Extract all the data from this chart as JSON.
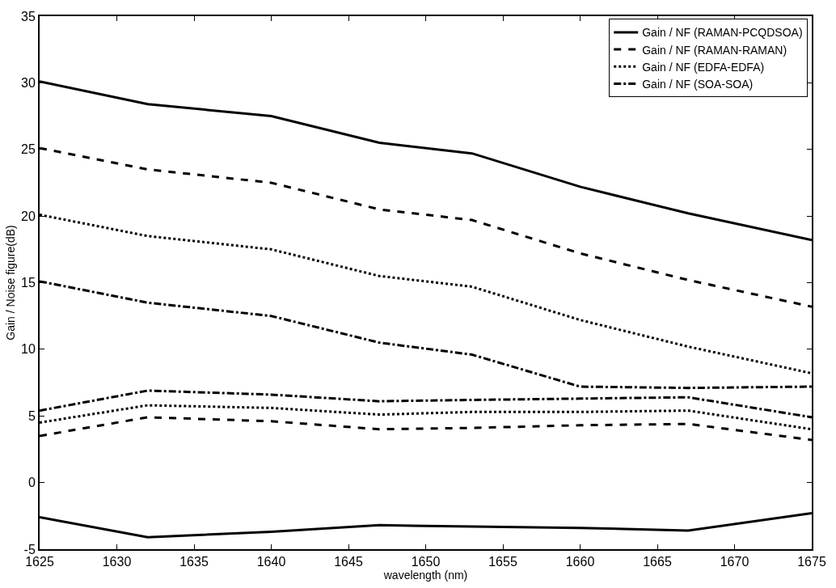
{
  "chart_data": {
    "type": "line",
    "xlabel": "wavelength (nm)",
    "ylabel": "Gain / Noise figure(dB)",
    "x": [
      1625,
      1632,
      1640,
      1647,
      1653,
      1660,
      1667,
      1675
    ],
    "xlim": [
      1625,
      1675
    ],
    "xticks": [
      1625,
      1630,
      1635,
      1640,
      1645,
      1650,
      1655,
      1660,
      1665,
      1670,
      1675
    ],
    "ylim": [
      -5,
      35
    ],
    "yticks": [
      -5,
      0,
      5,
      10,
      15,
      20,
      25,
      30,
      35
    ],
    "legend": "top right",
    "marker": "none",
    "series": [
      {
        "name": "Gain / NF (RAMAN-PCQDSOA)",
        "color": "#000000",
        "line_style": "solid",
        "values": [
          30.1,
          28.4,
          27.5,
          25.5,
          24.7,
          22.2,
          20.2,
          18.2
        ]
      },
      {
        "name": "Gain / NF (RAMAN-RAMAN)",
        "color": "#000000",
        "line_style": "dashed",
        "values": [
          25.1,
          23.5,
          22.5,
          20.5,
          19.7,
          17.2,
          15.2,
          13.2
        ]
      },
      {
        "name": "Gain / NF (EDFA-EDFA)",
        "color": "#000000",
        "line_style": "dotted",
        "values": [
          20.1,
          18.5,
          17.5,
          15.5,
          14.7,
          12.2,
          10.2,
          8.2
        ]
      },
      {
        "name": "Gain / NF (SOA-SOA)",
        "color": "#000000",
        "line_style": "dashdot",
        "values": [
          15.1,
          13.5,
          12.5,
          10.5,
          9.6,
          7.2,
          7.1,
          7.2
        ]
      },
      {
        "color": "#000000",
        "line_style": "solid",
        "values": [
          -2.6,
          -4.1,
          -3.7,
          -3.2,
          -3.3,
          -3.4,
          -3.6,
          -2.3
        ]
      },
      {
        "color": "#000000",
        "line_style": "dashed",
        "values": [
          3.5,
          4.9,
          4.6,
          4.0,
          4.1,
          4.3,
          4.4,
          3.2
        ]
      },
      {
        "color": "#000000",
        "line_style": "dotted",
        "values": [
          4.5,
          5.8,
          5.6,
          5.1,
          5.3,
          5.3,
          5.4,
          4.0
        ]
      },
      {
        "color": "#000000",
        "line_style": "dashdot",
        "values": [
          5.4,
          6.9,
          6.6,
          6.1,
          6.2,
          6.3,
          6.4,
          4.9
        ]
      }
    ]
  }
}
